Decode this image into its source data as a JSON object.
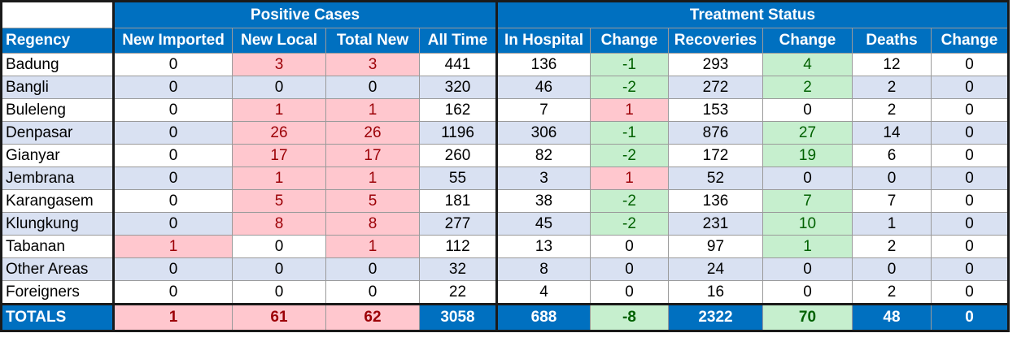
{
  "group_headers": {
    "positive": "Positive Cases",
    "treatment": "Treatment Status"
  },
  "columns": [
    "Regency",
    "New Imported",
    "New Local",
    "Total New",
    "All Time",
    "In Hospital",
    "Change",
    "Recoveries",
    "Change",
    "Deaths",
    "Change"
  ],
  "rows": [
    [
      "Badung",
      "0",
      "3",
      "3",
      "441",
      "136",
      "-1",
      "293",
      "4",
      "12",
      "0"
    ],
    [
      "Bangli",
      "0",
      "0",
      "0",
      "320",
      "46",
      "-2",
      "272",
      "2",
      "2",
      "0"
    ],
    [
      "Buleleng",
      "0",
      "1",
      "1",
      "162",
      "7",
      "1",
      "153",
      "0",
      "2",
      "0"
    ],
    [
      "Denpasar",
      "0",
      "26",
      "26",
      "1196",
      "306",
      "-1",
      "876",
      "27",
      "14",
      "0"
    ],
    [
      "Gianyar",
      "0",
      "17",
      "17",
      "260",
      "82",
      "-2",
      "172",
      "19",
      "6",
      "0"
    ],
    [
      "Jembrana",
      "0",
      "1",
      "1",
      "55",
      "3",
      "1",
      "52",
      "0",
      "0",
      "0"
    ],
    [
      "Karangasem",
      "0",
      "5",
      "5",
      "181",
      "38",
      "-2",
      "136",
      "7",
      "7",
      "0"
    ],
    [
      "Klungkung",
      "0",
      "8",
      "8",
      "277",
      "45",
      "-2",
      "231",
      "10",
      "1",
      "0"
    ],
    [
      "Tabanan",
      "1",
      "0",
      "1",
      "112",
      "13",
      "0",
      "97",
      "1",
      "2",
      "0"
    ],
    [
      "Other Areas",
      "0",
      "0",
      "0",
      "32",
      "8",
      "0",
      "24",
      "0",
      "0",
      "0"
    ],
    [
      "Foreigners",
      "0",
      "0",
      "0",
      "22",
      "4",
      "0",
      "16",
      "0",
      "2",
      "0"
    ]
  ],
  "totals": [
    "TOTALS",
    "1",
    "61",
    "62",
    "3058",
    "688",
    "-8",
    "2322",
    "70",
    "48",
    "0"
  ],
  "colors": {
    "header_blue": "#0070c0",
    "row_alt": "#d9e1f2",
    "bad_fill": "#ffc7ce",
    "bad_text": "#9c0006",
    "good_fill": "#c6efce",
    "good_text": "#006100"
  }
}
